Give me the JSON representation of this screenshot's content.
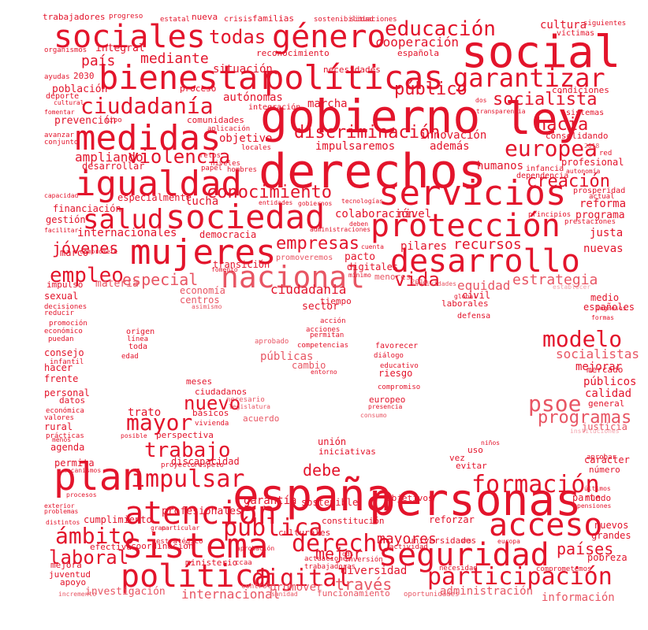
{
  "colors": {
    "primary": "#e3142b",
    "mid": "#e85563",
    "light": "#f2a2ab",
    "pale": "#f7c5cb",
    "background": "#ffffff"
  },
  "words": [
    {
      "text": "gobierno"
    },
    {
      "text": "derechos"
    },
    {
      "text": "social"
    },
    {
      "text": "sociales"
    },
    {
      "text": "ley"
    },
    {
      "text": "bienestar"
    },
    {
      "text": "políticas"
    },
    {
      "text": "género"
    },
    {
      "text": "garantizar"
    },
    {
      "text": "educación"
    },
    {
      "text": "medidas"
    },
    {
      "text": "igualdad"
    },
    {
      "text": "servicios"
    },
    {
      "text": "sociedad"
    },
    {
      "text": "mujeres"
    },
    {
      "text": "protección"
    },
    {
      "text": "desarrollo"
    },
    {
      "text": "nacional"
    },
    {
      "text": "salud"
    },
    {
      "text": "europea"
    },
    {
      "text": "ciudadanía"
    },
    {
      "text": "socialista"
    },
    {
      "text": "todas"
    },
    {
      "text": "público"
    },
    {
      "text": "hacia"
    },
    {
      "text": "violencia"
    },
    {
      "text": "discriminación"
    },
    {
      "text": "conocimiento"
    },
    {
      "text": "creación"
    },
    {
      "text": "empleo"
    },
    {
      "text": "jóvenes"
    },
    {
      "text": "empresas"
    },
    {
      "text": "especial"
    },
    {
      "text": "vida"
    },
    {
      "text": "estrategia"
    },
    {
      "text": "mediante"
    },
    {
      "text": "país"
    },
    {
      "text": "situación"
    },
    {
      "text": "cooperación"
    },
    {
      "text": "cultura"
    },
    {
      "text": "autónomas"
    },
    {
      "text": "marcha"
    },
    {
      "text": "ampliando"
    },
    {
      "text": "impulsaremos"
    },
    {
      "text": "innovación"
    },
    {
      "text": "además"
    },
    {
      "text": "objetivo"
    },
    {
      "text": "humanos"
    },
    {
      "text": "profesional"
    },
    {
      "text": "lucha"
    },
    {
      "text": "reforma"
    },
    {
      "text": "programa"
    },
    {
      "text": "colaboración"
    },
    {
      "text": "nivel"
    },
    {
      "text": "recursos"
    },
    {
      "text": "pilares"
    },
    {
      "text": "justa"
    },
    {
      "text": "nuevas"
    },
    {
      "text": "equidad"
    },
    {
      "text": "ciudadania"
    },
    {
      "text": "pacto"
    },
    {
      "text": "digitales"
    },
    {
      "text": "transición"
    },
    {
      "text": "internacionales"
    },
    {
      "text": "democracia"
    },
    {
      "text": "economía"
    },
    {
      "text": "centros"
    },
    {
      "text": "materia"
    },
    {
      "text": "marco"
    },
    {
      "text": "medio"
    },
    {
      "text": "españoles"
    },
    {
      "text": "españa"
    },
    {
      "text": "personas"
    },
    {
      "text": "sistema"
    },
    {
      "text": "plan"
    },
    {
      "text": "atención"
    },
    {
      "text": "acceso"
    },
    {
      "text": "política"
    },
    {
      "text": "seguridad"
    },
    {
      "text": "formación"
    },
    {
      "text": "participación"
    },
    {
      "text": "digital"
    },
    {
      "text": "derecho"
    },
    {
      "text": "pública"
    },
    {
      "text": "impulsar"
    },
    {
      "text": "trabajo"
    },
    {
      "text": "mayor"
    },
    {
      "text": "nuevo"
    },
    {
      "text": "modelo"
    },
    {
      "text": "psoe"
    },
    {
      "text": "programas"
    },
    {
      "text": "ámbito"
    },
    {
      "text": "laboral"
    },
    {
      "text": "mejor"
    },
    {
      "text": "mayores"
    },
    {
      "text": "través"
    },
    {
      "text": "países"
    },
    {
      "text": "debe"
    },
    {
      "text": "garantía"
    },
    {
      "text": "internacional"
    },
    {
      "text": "promover"
    },
    {
      "text": "diversidad"
    },
    {
      "text": "administración"
    },
    {
      "text": "información"
    },
    {
      "text": "investigación"
    },
    {
      "text": "socialistas"
    },
    {
      "text": "mejorar"
    },
    {
      "text": "públicos"
    },
    {
      "text": "calidad"
    },
    {
      "text": "públicas"
    },
    {
      "text": "cambio"
    },
    {
      "text": "sector"
    },
    {
      "text": "mercado"
    },
    {
      "text": "general"
    },
    {
      "text": "justicia"
    },
    {
      "text": "trato"
    },
    {
      "text": "profesionales"
    },
    {
      "text": "cumplimiento"
    },
    {
      "text": "sostenible"
    },
    {
      "text": "objetivos"
    },
    {
      "text": "reforzar"
    },
    {
      "text": "universidades"
    },
    {
      "text": "culturales"
    },
    {
      "text": "coordinación"
    },
    {
      "text": "efectiva"
    },
    {
      "text": "carácter"
    },
    {
      "text": "número"
    },
    {
      "text": "nuevos"
    },
    {
      "text": "grandes"
    },
    {
      "text": "pobreza"
    },
    {
      "text": "agenda"
    },
    {
      "text": "permita"
    },
    {
      "text": "ciudadanos"
    },
    {
      "text": "meses"
    },
    {
      "text": "básicos"
    },
    {
      "text": "acuerdo"
    },
    {
      "text": "unión"
    },
    {
      "text": "iniciativas"
    },
    {
      "text": "uso"
    },
    {
      "text": "vez"
    },
    {
      "text": "evitar"
    },
    {
      "text": "parte"
    },
    {
      "text": "mundo"
    },
    {
      "text": "consejo"
    },
    {
      "text": "hacer"
    },
    {
      "text": "frente"
    },
    {
      "text": "personal"
    },
    {
      "text": "rural"
    },
    {
      "text": "datos"
    },
    {
      "text": "tiempo"
    },
    {
      "text": "riesgo"
    },
    {
      "text": "europeo"
    },
    {
      "text": "civil"
    },
    {
      "text": "laborales"
    },
    {
      "text": "defensa"
    },
    {
      "text": "constitución"
    },
    {
      "text": "apoyo"
    },
    {
      "text": "mejora"
    },
    {
      "text": "juventud"
    },
    {
      "text": "ministerio"
    },
    {
      "text": "gestión"
    },
    {
      "text": "financiación"
    },
    {
      "text": "especialmente"
    },
    {
      "text": "desarrollar"
    },
    {
      "text": "impulso"
    },
    {
      "text": "sexual"
    },
    {
      "text": "prevención"
    },
    {
      "text": "población"
    },
    {
      "text": "comunidades"
    },
    {
      "text": "integral"
    },
    {
      "text": "reconocimiento"
    },
    {
      "text": "necesidades"
    },
    {
      "text": "española"
    },
    {
      "text": "trabajadores"
    },
    {
      "text": "familias"
    },
    {
      "text": "nueva"
    },
    {
      "text": "crisis"
    },
    {
      "text": "progreso"
    },
    {
      "text": "estatal"
    },
    {
      "text": "sostenibilidad"
    },
    {
      "text": "situaciones"
    },
    {
      "text": "siguientes"
    },
    {
      "text": "víctimas"
    },
    {
      "text": "organismos"
    },
    {
      "text": "ayudas"
    },
    {
      "text": "2030"
    },
    {
      "text": "proceso"
    },
    {
      "text": "condiciones"
    },
    {
      "text": "sistemas"
    },
    {
      "text": "consolidando"
    },
    {
      "text": "infancia"
    },
    {
      "text": "dependencia"
    },
    {
      "text": "prosperidad"
    },
    {
      "text": "actual"
    },
    {
      "text": "prestaciones"
    },
    {
      "text": "red"
    },
    {
      "text": "2018"
    },
    {
      "text": "deporte"
    },
    {
      "text": "cultural"
    },
    {
      "text": "fomentar"
    },
    {
      "text": "tipo"
    },
    {
      "text": "aplicación"
    },
    {
      "text": "avanzar"
    },
    {
      "text": "conjunto"
    },
    {
      "text": "locales"
    },
    {
      "text": "retos"
    },
    {
      "text": "niveles"
    },
    {
      "text": "papel"
    },
    {
      "text": "hombres"
    },
    {
      "text": "entidades"
    },
    {
      "text": "gobiernos"
    },
    {
      "text": "tecnologías"
    },
    {
      "text": "principios"
    },
    {
      "text": "capacidad"
    },
    {
      "text": "facilitar"
    },
    {
      "text": "compromete"
    },
    {
      "text": "administraciones"
    },
    {
      "text": "deben"
    },
    {
      "text": "cuenta"
    },
    {
      "text": "promoveremos"
    },
    {
      "text": "mínimo"
    },
    {
      "text": "menores"
    },
    {
      "text": "2019"
    },
    {
      "text": "actividades"
    },
    {
      "text": "establecer"
    },
    {
      "text": "fomento"
    },
    {
      "text": "asimismo"
    },
    {
      "text": "decisiones"
    },
    {
      "text": "reducir"
    },
    {
      "text": "promoción"
    },
    {
      "text": "económico"
    },
    {
      "text": "puedan"
    },
    {
      "text": "infantil"
    },
    {
      "text": "valores"
    },
    {
      "text": "económica"
    },
    {
      "text": "prácticas"
    },
    {
      "text": "menos"
    },
    {
      "text": "mecanismos"
    },
    {
      "text": "procesos"
    },
    {
      "text": "exterior"
    },
    {
      "text": "problemas"
    },
    {
      "text": "distintos"
    },
    {
      "text": "gran"
    },
    {
      "text": "particular"
    },
    {
      "text": "origen"
    },
    {
      "text": "línea"
    },
    {
      "text": "toda"
    },
    {
      "text": "edad"
    },
    {
      "text": "acción"
    },
    {
      "text": "acciones"
    },
    {
      "text": "permitan"
    },
    {
      "text": "aprobado"
    },
    {
      "text": "competencias"
    },
    {
      "text": "favorecer"
    },
    {
      "text": "diálogo"
    },
    {
      "text": "educativo"
    },
    {
      "text": "entorno"
    },
    {
      "text": "compromiso"
    },
    {
      "text": "presencia"
    },
    {
      "text": "consumo"
    },
    {
      "text": "necesario"
    },
    {
      "text": "legislatura"
    },
    {
      "text": "vivienda"
    },
    {
      "text": "posible"
    },
    {
      "text": "perspectiva"
    },
    {
      "text": "discapacidad"
    },
    {
      "text": "proyecto"
    },
    {
      "text": "respeto"
    },
    {
      "text": "estratégico"
    },
    {
      "text": "actuaciones"
    },
    {
      "text": "inversión"
    },
    {
      "text": "actividad"
    },
    {
      "text": "sns"
    },
    {
      "text": "europa"
    },
    {
      "text": "trabajadoras"
    },
    {
      "text": "ods"
    },
    {
      "text": "ccaa"
    },
    {
      "text": "comprometemos"
    },
    {
      "text": "necesidad"
    },
    {
      "text": "control"
    },
    {
      "text": "sanidad"
    },
    {
      "text": "funcionamiento"
    },
    {
      "text": "oportunidades"
    },
    {
      "text": "incremento"
    },
    {
      "text": "instituciones"
    },
    {
      "text": "aprobar"
    },
    {
      "text": "últimos"
    },
    {
      "text": "pensiones"
    },
    {
      "text": "formas"
    },
    {
      "text": "ingresos"
    },
    {
      "text": "autonomía"
    },
    {
      "text": "transparencia"
    },
    {
      "text": "dos"
    },
    {
      "text": "integración"
    },
    {
      "text": "aprobación"
    },
    {
      "text": "global"
    },
    {
      "text": "niños"
    },
    {
      "text": "ley"
    }
  ]
}
